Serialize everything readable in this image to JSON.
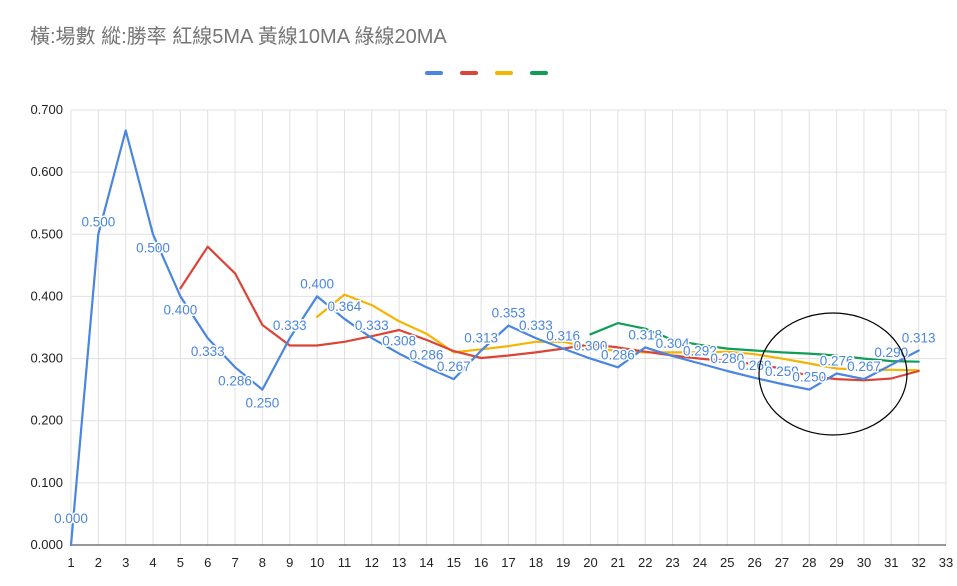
{
  "chart_data": {
    "type": "line",
    "title": "橫:場數 縱:勝率  紅線5MA 黃線10MA 綠線20MA",
    "xlabel": "",
    "ylabel": "",
    "x_ticks": [
      "1",
      "2",
      "3",
      "4",
      "5",
      "6",
      "7",
      "8",
      "9",
      "10",
      "11",
      "12",
      "13",
      "14",
      "15",
      "16",
      "17",
      "18",
      "19",
      "20",
      "21",
      "22",
      "23",
      "24",
      "25",
      "26",
      "27",
      "28",
      "29",
      "30",
      "31",
      "32",
      "33"
    ],
    "y_ticks": [
      "0.000",
      "0.100",
      "0.200",
      "0.300",
      "0.400",
      "0.500",
      "0.600",
      "0.700"
    ],
    "xlim": [
      1,
      33
    ],
    "ylim": [
      0,
      0.7
    ],
    "grid": true,
    "legend_position": "top",
    "series": [
      {
        "color": "#4a86e0",
        "x": [
          1,
          2,
          3,
          4,
          5,
          6,
          7,
          8,
          9,
          10,
          11,
          12,
          13,
          14,
          15,
          16,
          17,
          18,
          19,
          20,
          21,
          22,
          23,
          24,
          25,
          26,
          27,
          28,
          29,
          30,
          31,
          32
        ],
        "values": [
          0.0,
          0.5,
          0.667,
          0.5,
          0.4,
          0.333,
          0.286,
          0.25,
          0.333,
          0.4,
          0.364,
          0.333,
          0.308,
          0.286,
          0.267,
          0.313,
          0.353,
          0.333,
          0.316,
          0.3,
          0.286,
          0.318,
          0.304,
          0.292,
          0.28,
          0.269,
          0.259,
          0.25,
          0.276,
          0.267,
          0.29,
          0.313
        ],
        "point_labels": [
          "0.000",
          "0.500",
          "",
          "0.500",
          "0.400",
          "0.333",
          "0.286",
          "0.250",
          "0.333",
          "0.400",
          "0.364",
          "0.333",
          "0.308",
          "0.286",
          "0.267",
          "0.313",
          "0.353",
          "0.333",
          "0.316",
          "0.300",
          "0.286",
          "0.318",
          "0.304",
          "0.292",
          "0.280",
          "0.269",
          "0.259",
          "0.250",
          "0.276",
          "0.267",
          "0.290",
          "0.313"
        ]
      },
      {
        "color": "#db4437",
        "x": [
          5,
          6,
          7,
          8,
          9,
          10,
          11,
          12,
          13,
          14,
          15,
          16,
          17,
          18,
          19,
          20,
          21,
          22,
          23,
          24,
          25,
          26,
          27,
          28,
          29,
          30,
          31,
          32
        ],
        "values": [
          0.413,
          0.48,
          0.437,
          0.354,
          0.321,
          0.321,
          0.327,
          0.336,
          0.346,
          0.33,
          0.312,
          0.301,
          0.305,
          0.31,
          0.316,
          0.323,
          0.318,
          0.311,
          0.305,
          0.3,
          0.296,
          0.291,
          0.284,
          0.272,
          0.267,
          0.265,
          0.268,
          0.28
        ]
      },
      {
        "color": "#f4b400",
        "x": [
          10,
          11,
          12,
          13,
          14,
          15,
          16,
          17,
          18,
          19,
          20,
          21,
          22,
          23,
          24,
          25,
          26,
          27,
          28,
          29,
          30,
          31,
          32
        ],
        "values": [
          0.367,
          0.403,
          0.386,
          0.36,
          0.34,
          0.31,
          0.315,
          0.32,
          0.327,
          0.327,
          0.318,
          0.312,
          0.31,
          0.31,
          0.31,
          0.311,
          0.307,
          0.3,
          0.292,
          0.284,
          0.282,
          0.282,
          0.281
        ]
      },
      {
        "color": "#0f9d58",
        "x": [
          20,
          21,
          22,
          23,
          24,
          25,
          26,
          27,
          28,
          29,
          30,
          31,
          32
        ],
        "values": [
          0.339,
          0.357,
          0.348,
          0.33,
          0.322,
          0.316,
          0.313,
          0.31,
          0.308,
          0.305,
          0.3,
          0.296,
          0.295
        ]
      }
    ]
  }
}
